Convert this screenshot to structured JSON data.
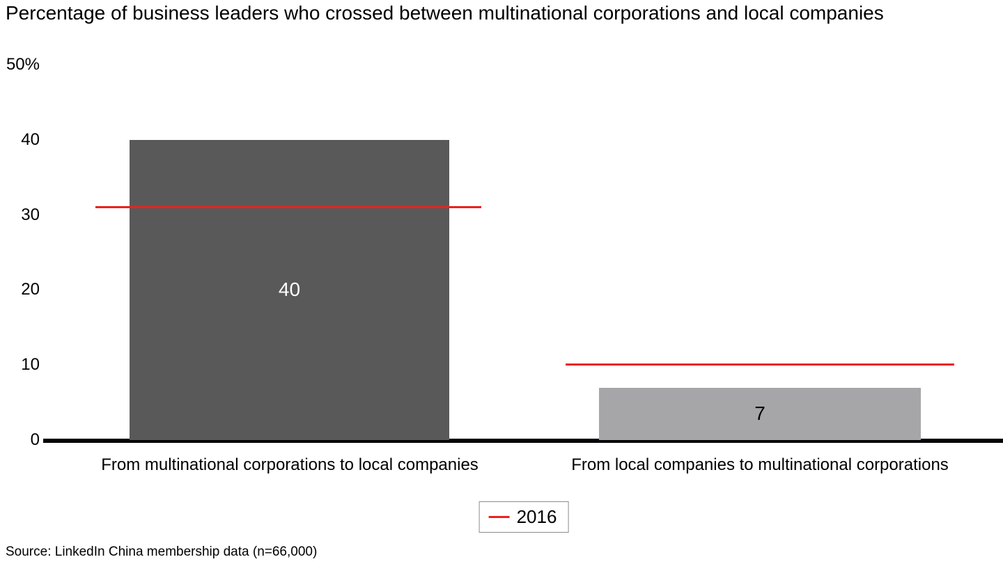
{
  "chart_data": {
    "type": "bar",
    "title": "Percentage of business leaders who crossed between multinational corporations and local companies",
    "ylim": [
      0,
      50
    ],
    "grid": false,
    "yticks": [
      {
        "value": 50,
        "label": "50%"
      },
      {
        "value": 40,
        "label": "40"
      },
      {
        "value": 30,
        "label": "30"
      },
      {
        "value": 20,
        "label": "20"
      },
      {
        "value": 10,
        "label": "10"
      },
      {
        "value": 0,
        "label": "0"
      }
    ],
    "categories": [
      "From multinational corporations to local companies",
      "From local companies to multinational corporations"
    ],
    "bars": [
      {
        "category": "From multinational corporations to local companies",
        "value": 40,
        "value_label": "40",
        "color": "#595959",
        "value_label_color": "#ffffff"
      },
      {
        "category": "From local companies to multinational corporations",
        "value": 7,
        "value_label": "7",
        "color": "#a6a6a9",
        "value_label_color": "#000000"
      }
    ],
    "reference_series": {
      "name": "2016",
      "color": "#e8231f",
      "values": [
        31,
        10
      ]
    },
    "legend": {
      "position": "bottom-center",
      "entries": [
        {
          "label": "2016",
          "marker": "red-line"
        }
      ]
    }
  },
  "source": "Source: LinkedIn China membership data (n=66,000)"
}
